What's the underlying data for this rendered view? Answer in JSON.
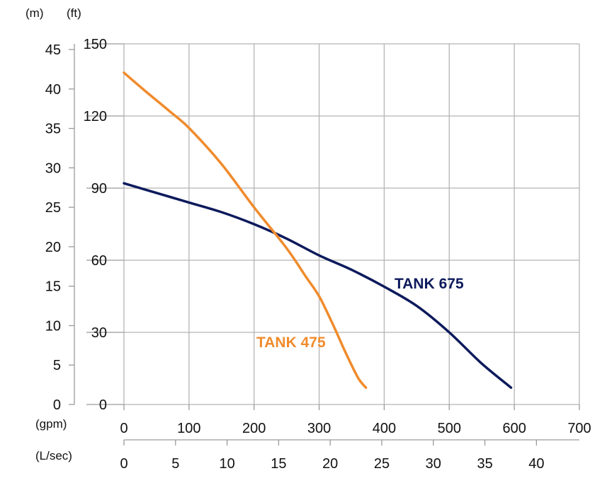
{
  "chart_data": {
    "type": "line",
    "units": {
      "head_m": "(m)",
      "head_ft": "(ft)",
      "flow_gpm": "(gpm)",
      "flow_lsec": "(L/sec)"
    },
    "axes": {
      "y_ft": {
        "ticks": [
          0,
          30,
          60,
          90,
          120,
          150
        ],
        "range": [
          0,
          150
        ]
      },
      "y_m": {
        "ticks": [
          0,
          5,
          10,
          15,
          20,
          25,
          30,
          35,
          40,
          45
        ]
      },
      "x_gpm": {
        "ticks": [
          0,
          100,
          200,
          300,
          400,
          500,
          600,
          700
        ],
        "range": [
          0,
          700
        ]
      },
      "x_lsec": {
        "ticks": [
          0,
          5,
          10,
          15,
          20,
          25,
          30,
          35,
          40
        ]
      }
    },
    "grid": true,
    "series": [
      {
        "name": "TANK 675",
        "color": "#0d1a5c",
        "x": [
          0,
          50,
          100,
          150,
          200,
          250,
          300,
          350,
          400,
          450,
          500,
          550,
          595
        ],
        "y": [
          92,
          88,
          84,
          80,
          75,
          69,
          62,
          56,
          49,
          41,
          30,
          17,
          7
        ]
      },
      {
        "name": "TANK 475",
        "color": "#f08b2c",
        "x": [
          0,
          30,
          70,
          100,
          150,
          200,
          250,
          280,
          300,
          320,
          340,
          360,
          372
        ],
        "y": [
          138,
          131,
          122,
          115,
          100,
          82,
          65,
          53,
          45,
          34,
          22,
          11,
          7
        ]
      }
    ]
  }
}
